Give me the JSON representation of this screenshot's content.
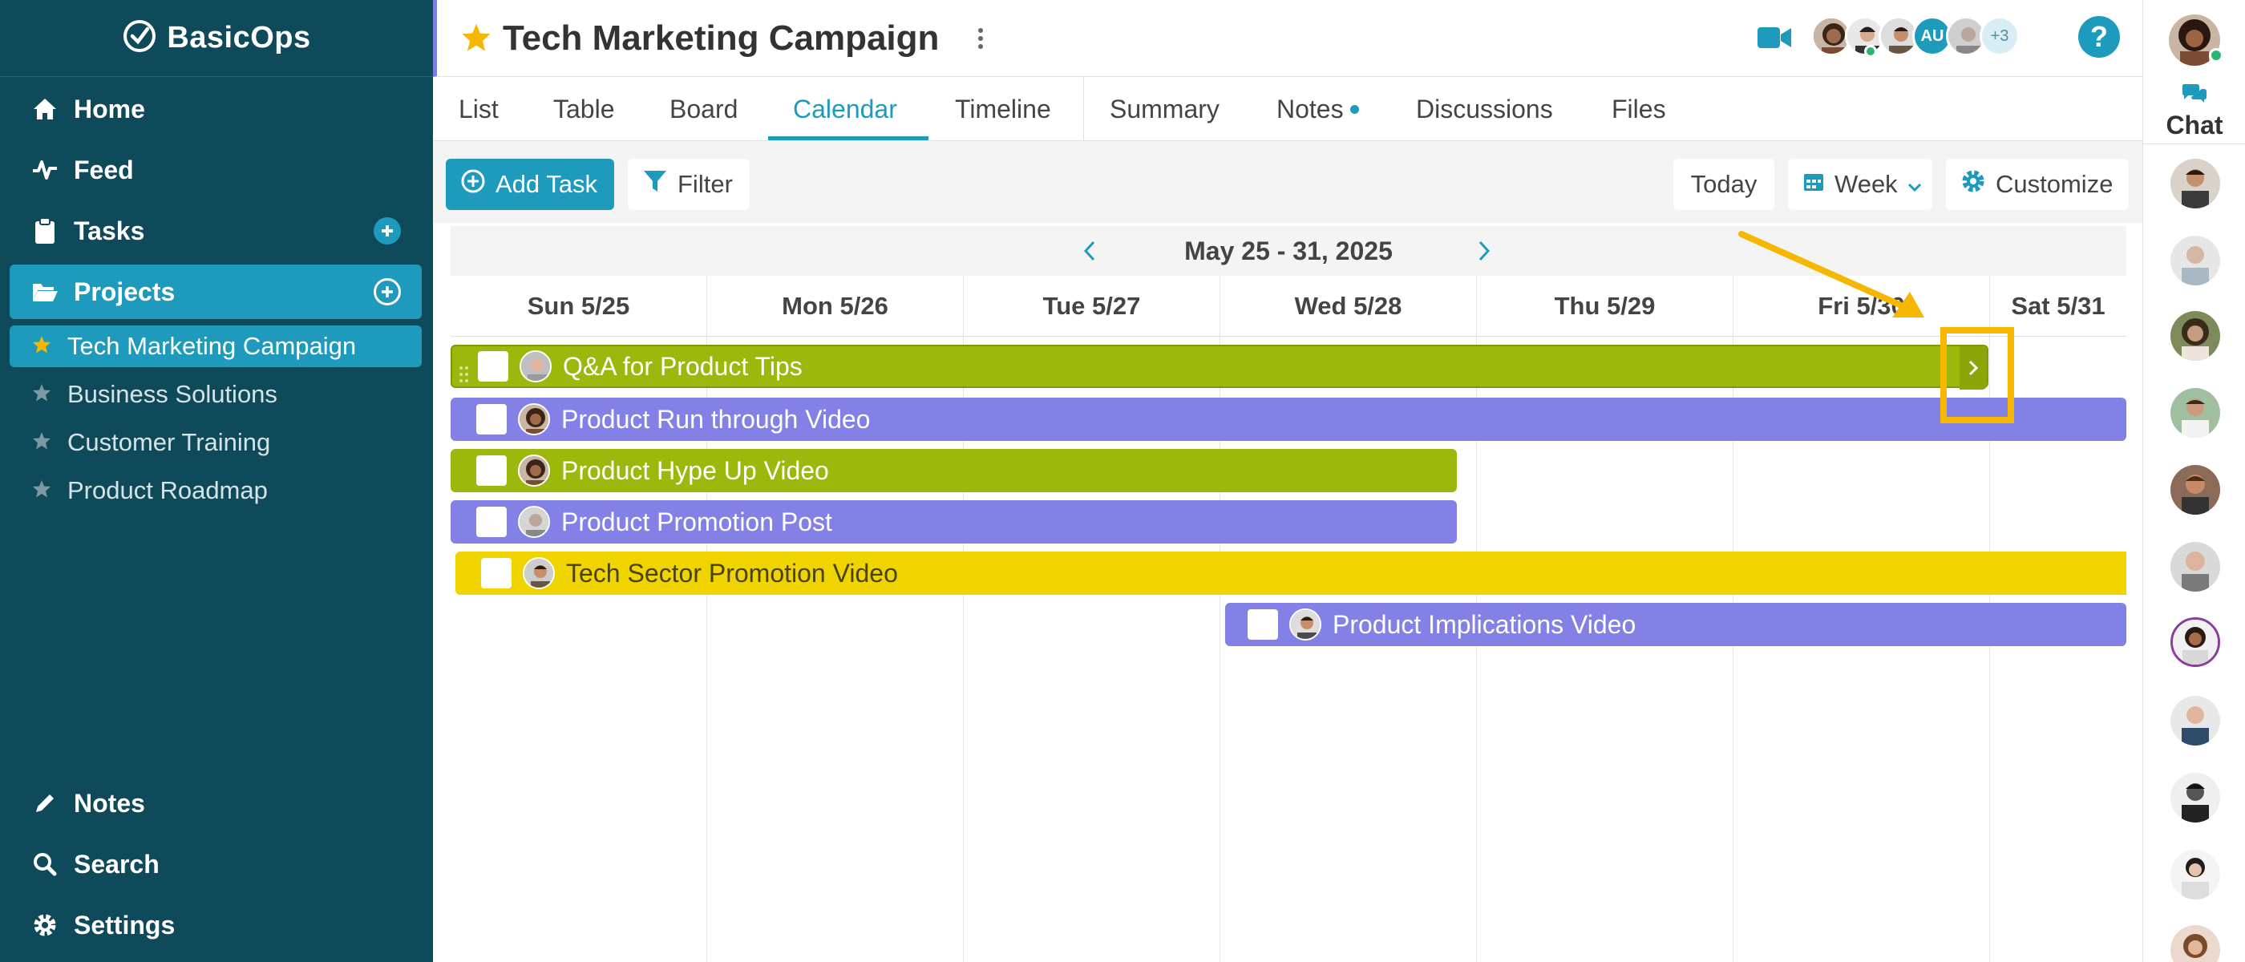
{
  "app": {
    "brand": "BasicOps"
  },
  "sidebar": {
    "nav": [
      {
        "label": "Home",
        "icon": "home-icon"
      },
      {
        "label": "Feed",
        "icon": "activity-icon"
      },
      {
        "label": "Tasks",
        "icon": "clipboard-icon"
      },
      {
        "label": "Projects",
        "icon": "folder-open-icon"
      }
    ],
    "projects": [
      {
        "label": "Tech Marketing Campaign",
        "active": true
      },
      {
        "label": "Business Solutions",
        "active": false
      },
      {
        "label": "Customer Training",
        "active": false
      },
      {
        "label": "Product Roadmap",
        "active": false
      }
    ],
    "bottom": [
      {
        "label": "Notes",
        "icon": "pencil-icon"
      },
      {
        "label": "Search",
        "icon": "search-icon"
      },
      {
        "label": "Settings",
        "icon": "gear-icon"
      }
    ]
  },
  "header": {
    "title": "Tech Marketing Campaign",
    "members_initials": "AU",
    "members_more": "+3",
    "help": "?"
  },
  "tabs": [
    "List",
    "Table",
    "Board",
    "Calendar",
    "Timeline",
    "Summary",
    "Notes",
    "Discussions",
    "Files"
  ],
  "active_tab": "Calendar",
  "toolbar": {
    "add_task": "Add Task",
    "filter": "Filter",
    "today": "Today",
    "view": "Week",
    "customize": "Customize"
  },
  "calendar": {
    "range": "May 25 - 31, 2025",
    "days": [
      "Sun 5/25",
      "Mon 5/26",
      "Tue 5/27",
      "Wed 5/28",
      "Thu 5/29",
      "Fri 5/30",
      "Sat 5/31"
    ],
    "tasks": [
      {
        "title": "Q&A for Product Tips",
        "color": "#9cb80c"
      },
      {
        "title": "Product Run through Video",
        "color": "#8481e6"
      },
      {
        "title": "Product Hype Up Video",
        "color": "#9cb80c"
      },
      {
        "title": "Product Promotion Post",
        "color": "#8481e6"
      },
      {
        "title": "Tech Sector Promotion Video",
        "color": "#f0d400"
      },
      {
        "title": "Product Implications Video",
        "color": "#8481e6"
      }
    ]
  },
  "chat": {
    "label": "Chat"
  },
  "colors": {
    "sidebar": "#0f4a5b",
    "accent": "#1e9bbc",
    "highlight": "#f5b700"
  }
}
